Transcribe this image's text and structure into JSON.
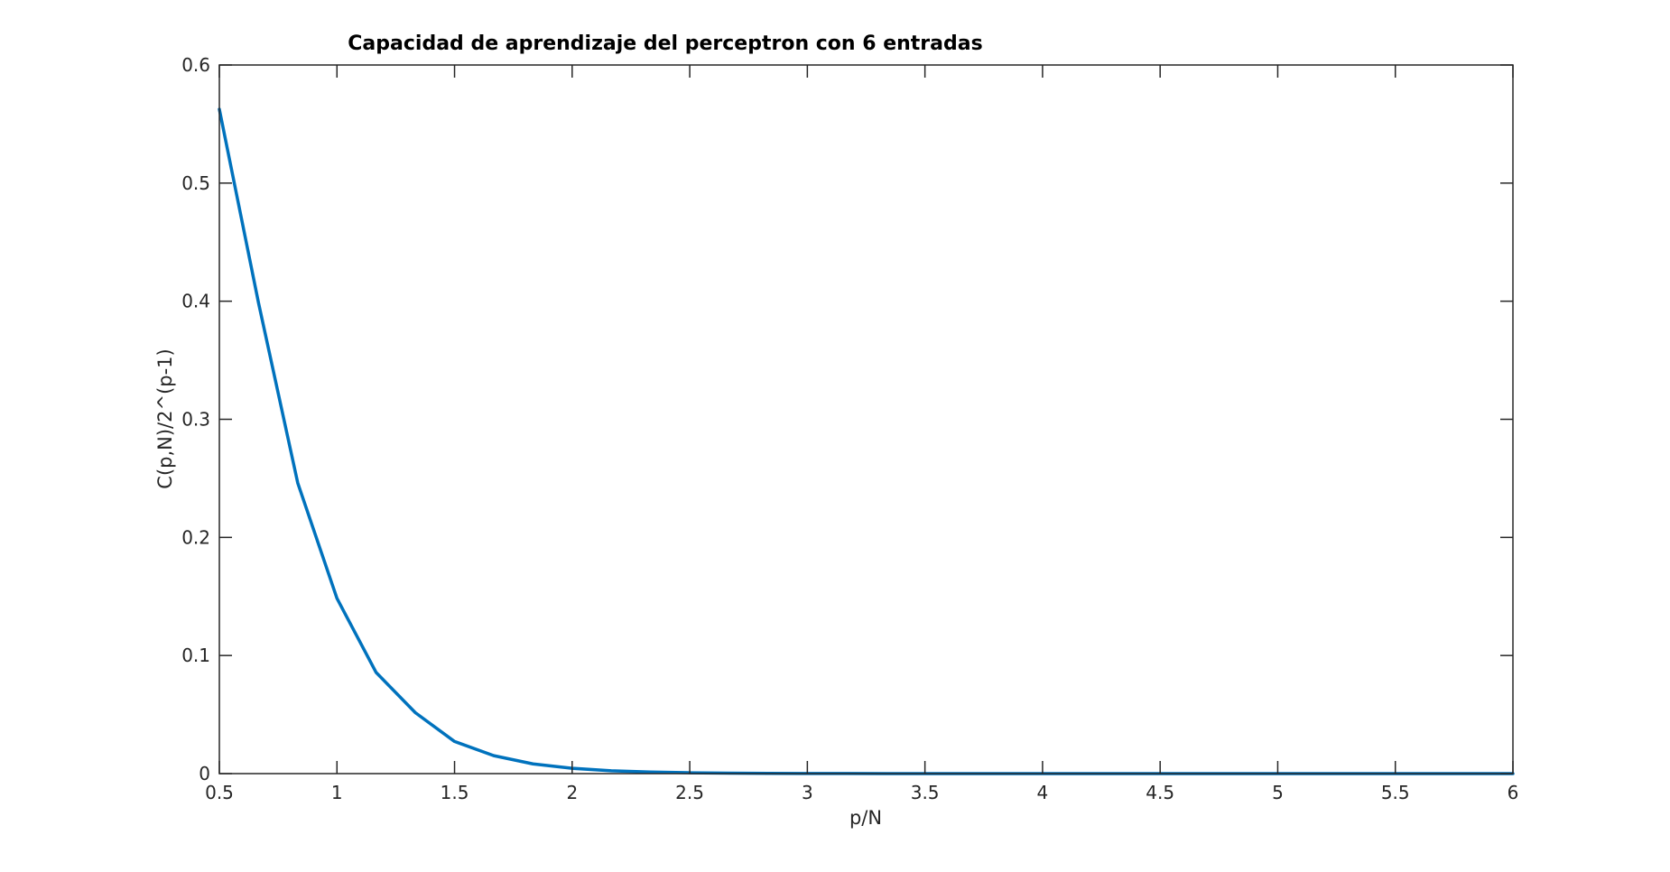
{
  "chart_data": {
    "type": "line",
    "title": "Capacidad de aprendizaje del perceptron con 6 entradas",
    "xlabel": "p/N",
    "ylabel": "C(p,N)/2^(p-1)",
    "xlim": [
      0.5,
      6
    ],
    "ylim": [
      0,
      0.6
    ],
    "xticks": [
      0.5,
      1,
      1.5,
      2,
      2.5,
      3,
      3.5,
      4,
      4.5,
      5,
      5.5,
      6
    ],
    "xtick_labels": [
      "0.5",
      "1",
      "1.5",
      "2",
      "2.5",
      "3",
      "3.5",
      "4",
      "4.5",
      "5",
      "5.5",
      "6"
    ],
    "yticks": [
      0,
      0.1,
      0.2,
      0.3,
      0.4,
      0.5,
      0.6
    ],
    "ytick_labels": [
      "0",
      "0.1",
      "0.2",
      "0.3",
      "0.4",
      "0.5",
      "0.6"
    ],
    "grid": false,
    "series": [
      {
        "color": "#0072BD",
        "x": [
          0.5,
          0.6667,
          0.8333,
          1.0,
          1.1667,
          1.3333,
          1.5,
          1.6667,
          1.8333,
          2.0,
          2.1667,
          2.3333,
          2.5,
          2.6667,
          2.8333,
          3.0,
          3.1667,
          3.3333,
          3.5,
          3.6667,
          3.8333,
          4.0,
          4.1667,
          4.3333,
          4.5,
          4.6667,
          4.8333,
          5.0,
          5.1667,
          5.3333,
          5.5,
          5.6667,
          5.8333,
          6.0
        ],
        "y": [
          0.5625,
          0.3984,
          0.2461,
          0.1484,
          0.0856,
          0.0516,
          0.0272,
          0.0152,
          0.0082,
          0.0045,
          0.0024,
          0.0013,
          0.0007,
          0.0004,
          0.0002,
          0.0001,
          5e-05,
          3e-05,
          1e-05,
          0.0,
          0.0,
          0.0,
          0.0,
          0.0,
          0.0,
          0.0,
          0.0,
          0.0,
          0.0,
          0.0,
          0.0,
          0.0,
          0.0,
          0.0
        ]
      }
    ]
  }
}
